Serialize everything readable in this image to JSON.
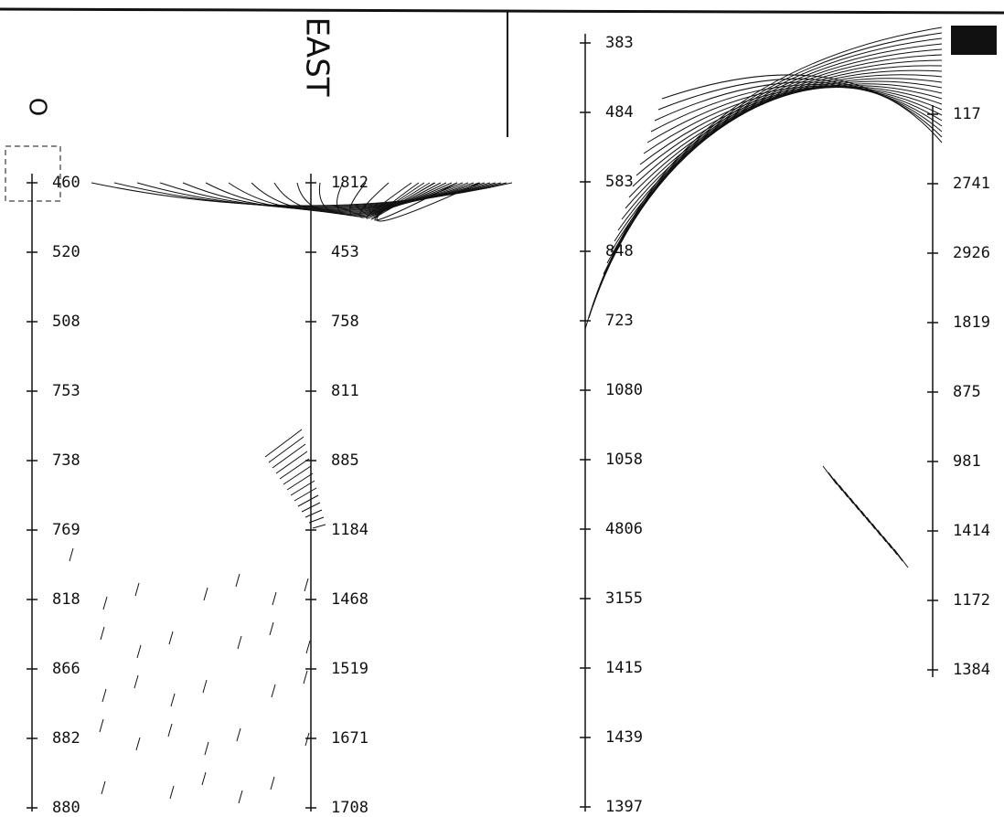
{
  "header": {
    "direction": "EAST",
    "origin": "O"
  },
  "profiles": [
    {
      "labels": [
        "460",
        "520",
        "508",
        "753",
        "738",
        "769",
        "818",
        "866",
        "882",
        "880"
      ]
    },
    {
      "labels": [
        "1812",
        "453",
        "758",
        "811",
        "885",
        "1184",
        "1468",
        "1519",
        "1671",
        "1708"
      ]
    },
    {
      "labels": [
        "383",
        "484",
        "583",
        "848",
        "723",
        "1080",
        "1058",
        "4806",
        "3155",
        "1415",
        "1439",
        "1397"
      ]
    },
    {
      "labels": [
        "117",
        "2741",
        "2926",
        "1819",
        "875",
        "981",
        "1414",
        "1172",
        "1384"
      ]
    }
  ]
}
